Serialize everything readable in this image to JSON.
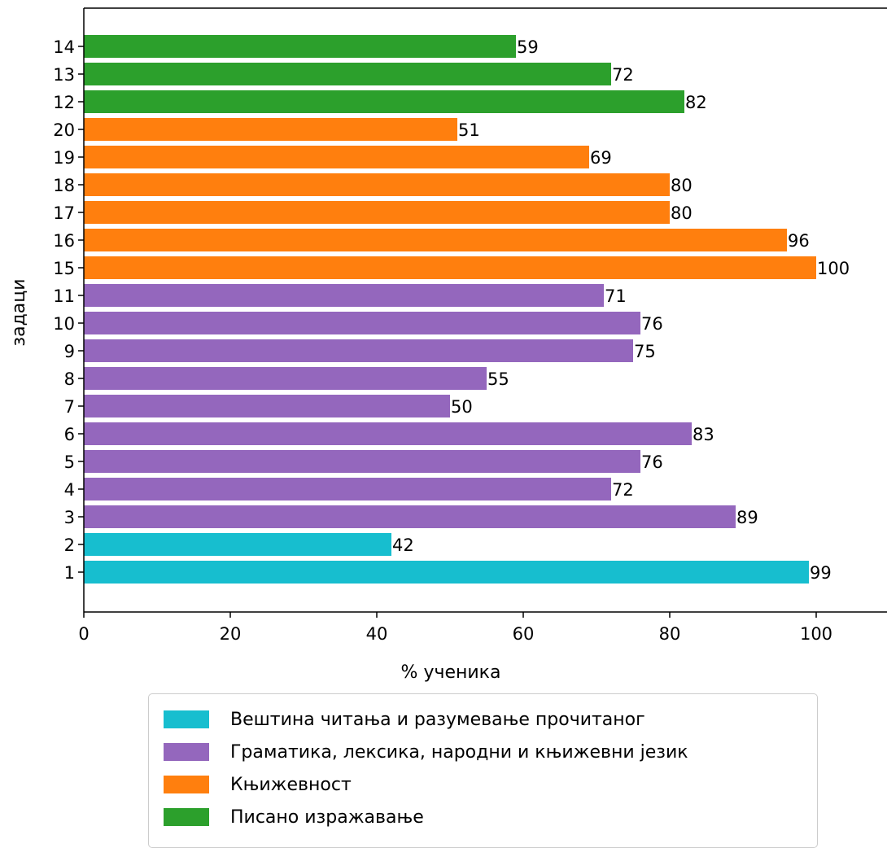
{
  "chart_data": {
    "type": "bar",
    "orientation": "horizontal",
    "title": "",
    "xlabel": "% ученика",
    "ylabel": "задаци",
    "xlim": [
      0,
      110
    ],
    "xticks": [
      0,
      20,
      40,
      60,
      80,
      100
    ],
    "grid": false,
    "legend_position": "bottom",
    "categories": [
      "1",
      "2",
      "3",
      "4",
      "5",
      "6",
      "7",
      "8",
      "9",
      "10",
      "11",
      "15",
      "16",
      "17",
      "18",
      "19",
      "20",
      "12",
      "13",
      "14"
    ],
    "values": [
      99,
      42,
      89,
      72,
      76,
      83,
      50,
      55,
      75,
      76,
      71,
      100,
      96,
      80,
      80,
      69,
      51,
      82,
      72,
      59
    ],
    "bar_groups": [
      0,
      0,
      1,
      1,
      1,
      1,
      1,
      1,
      1,
      1,
      1,
      2,
      2,
      2,
      2,
      2,
      2,
      3,
      3,
      3
    ],
    "groups": [
      {
        "name": "Вештина читања и разумевање прочитаног",
        "color": "#17becf"
      },
      {
        "name": "Граматика, лексика, народни и књижевни језик",
        "color": "#9467bd"
      },
      {
        "name": "Књижевност",
        "color": "#ff7f0e"
      },
      {
        "name": "Писано изражавање",
        "color": "#2ca02c"
      }
    ]
  }
}
